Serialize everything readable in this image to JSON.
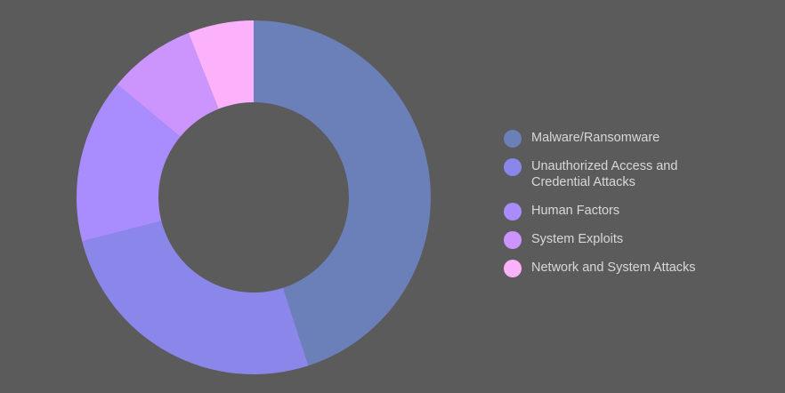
{
  "chart_data": {
    "type": "pie",
    "title": "",
    "donut": true,
    "background": "#5b5b5b",
    "legend_position": "right",
    "categories": [
      "Malware/Ransomware",
      "Unauthorized Access and Credential Attacks",
      "Human Factors",
      "System Exploits",
      "Network and System Attacks"
    ],
    "values": [
      45,
      26,
      15,
      8,
      6
    ],
    "colors": [
      "#6b7fb8",
      "#8b86ea",
      "#a98cfd",
      "#cc95fe",
      "#fbb2fb"
    ]
  }
}
